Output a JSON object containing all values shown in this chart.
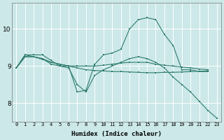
{
  "xlabel": "Humidex (Indice chaleur)",
  "bg_color": "#cce8e8",
  "grid_color": "#ffffff",
  "line_color": "#2e7d6e",
  "xlim": [
    -0.5,
    23.5
  ],
  "ylim": [
    7.5,
    10.7
  ],
  "yticks": [
    8,
    9,
    10
  ],
  "xticks": [
    0,
    1,
    2,
    3,
    4,
    5,
    6,
    7,
    8,
    9,
    10,
    11,
    12,
    13,
    14,
    15,
    16,
    17,
    18,
    19,
    20,
    21,
    22,
    23
  ],
  "series": [
    {
      "x": [
        0,
        1,
        2,
        3,
        4,
        5,
        6,
        7,
        8,
        9,
        10,
        11,
        12,
        13,
        14,
        15,
        16,
        17,
        18,
        19,
        20,
        21,
        22
      ],
      "y": [
        8.95,
        9.3,
        9.3,
        9.3,
        9.15,
        9.0,
        9.0,
        8.3,
        8.35,
        9.05,
        9.3,
        9.35,
        9.45,
        10.0,
        10.25,
        10.3,
        10.25,
        9.85,
        9.55,
        8.9,
        8.9,
        8.85,
        8.85
      ]
    },
    {
      "x": [
        0,
        1,
        2,
        3,
        4,
        5,
        6,
        7,
        8,
        9,
        10,
        11,
        12,
        13,
        14,
        15,
        16,
        17,
        18,
        19,
        20,
        21,
        22
      ],
      "y": [
        8.95,
        9.25,
        9.25,
        9.2,
        9.1,
        9.05,
        9.0,
        8.95,
        8.9,
        8.88,
        8.87,
        8.85,
        8.85,
        8.84,
        8.83,
        8.82,
        8.82,
        8.83,
        8.83,
        8.84,
        8.85,
        8.86,
        8.87
      ]
    },
    {
      "x": [
        0,
        1,
        2,
        3,
        4,
        5,
        6,
        7,
        8,
        9,
        10,
        11,
        12,
        13,
        14,
        15,
        16,
        17,
        18,
        19,
        20,
        21,
        22
      ],
      "y": [
        8.95,
        9.25,
        9.25,
        9.18,
        9.1,
        9.05,
        9.0,
        9.0,
        9.0,
        9.0,
        9.02,
        9.05,
        9.08,
        9.1,
        9.1,
        9.1,
        9.05,
        9.02,
        9.0,
        8.97,
        8.95,
        8.92,
        8.9
      ]
    },
    {
      "x": [
        0,
        1,
        2,
        3,
        4,
        5,
        6,
        7,
        8,
        9,
        10,
        11,
        12,
        13,
        14,
        15,
        16,
        17,
        18,
        19,
        20,
        21,
        22,
        23
      ],
      "y": [
        8.95,
        9.3,
        9.25,
        9.2,
        9.05,
        9.0,
        8.95,
        8.5,
        8.3,
        8.75,
        8.9,
        9.0,
        9.1,
        9.2,
        9.25,
        9.2,
        9.1,
        8.95,
        8.7,
        8.5,
        8.3,
        8.05,
        7.8,
        7.6
      ]
    }
  ]
}
